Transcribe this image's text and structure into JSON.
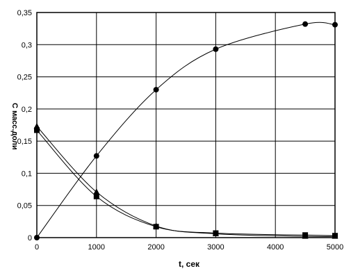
{
  "chart_data": {
    "type": "line",
    "xlabel": "t, сек",
    "ylabel": "С масс.доли",
    "xlim": [
      0,
      5000
    ],
    "ylim": [
      0,
      0.35
    ],
    "xticks": [
      "0",
      "1000",
      "2000",
      "3000",
      "4000",
      "5000"
    ],
    "yticks": [
      "0",
      "0,05",
      "0,1",
      "0,15",
      "0,2",
      "0,25",
      "0,3",
      "0,35"
    ],
    "grid": true,
    "legend": "none",
    "series": [
      {
        "marker": "circle",
        "x": [
          0,
          1000,
          2000,
          3000,
          4500,
          5000
        ],
        "y": [
          0,
          0.127,
          0.23,
          0.293,
          0.332,
          0.331
        ]
      },
      {
        "marker": "square",
        "x": [
          0,
          1000,
          2000,
          3000,
          4500,
          5000
        ],
        "y": [
          0.167,
          0.064,
          0.017,
          0.007,
          0.004,
          0.003
        ]
      },
      {
        "marker": "triangle",
        "x": [
          0,
          1000,
          2000,
          3000,
          4500,
          5000
        ],
        "y": [
          0.173,
          0.071,
          0.018,
          0.006,
          0.002,
          0.002
        ]
      }
    ]
  }
}
